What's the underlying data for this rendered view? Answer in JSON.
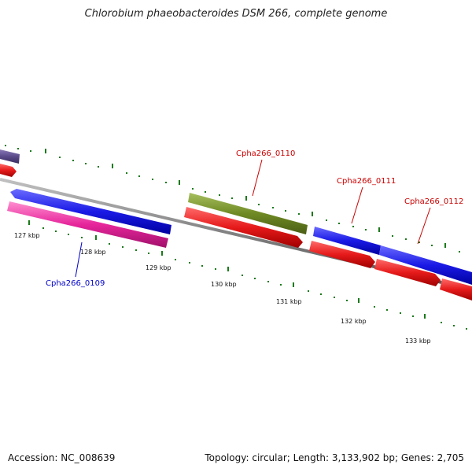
{
  "title": "Chlorobium phaeobacteroides DSM 266, complete genome",
  "accession": "Accession: NC_008639",
  "summary": "Topology: circular; Length: 3,133,902 bp; Genes: 2,705",
  "kbp_labels": [
    "127 kbp",
    "128 kbp",
    "129 kbp",
    "130 kbp",
    "131 kbp",
    "132 kbp",
    "133 kbp"
  ],
  "gene_labels": [
    {
      "text": "Cpha266_0109",
      "color": "#0000cc"
    },
    {
      "text": "Cpha266_0110",
      "color": "#cc0000"
    },
    {
      "text": "Cpha266_0111",
      "color": "#cc0000"
    },
    {
      "text": "Cpha266_0112",
      "color": "#cc0000"
    }
  ],
  "colors": {
    "backbone": "#808080",
    "tick": "#1a7a1a",
    "cds_forward": "#1a1ae6",
    "cds_reverse": "#e61a1a",
    "gene_magenta": "#e6259b",
    "gene_olive": "#6f8a24",
    "gene_purple": "#5a4a8a"
  }
}
